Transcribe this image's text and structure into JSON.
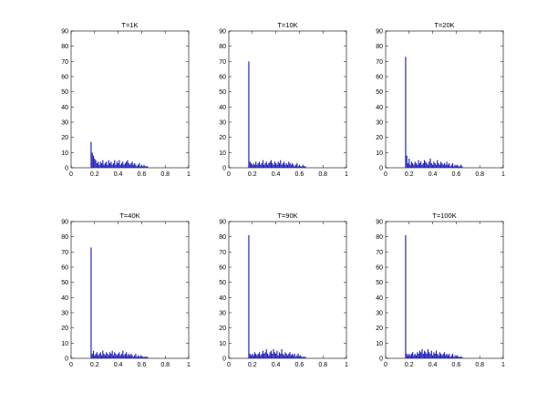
{
  "chart_data": [
    {
      "type": "bar",
      "title": "T=1K",
      "xlim": [
        0,
        1
      ],
      "ylim": [
        0,
        90
      ],
      "xticks": [
        "0",
        "0.2",
        "0.4",
        "0.6",
        "0.8",
        "1"
      ],
      "yticks": [
        "0",
        "10",
        "20",
        "30",
        "40",
        "50",
        "60",
        "70",
        "80",
        "90"
      ],
      "bar_color": "#1f1fbf",
      "x": [
        0.17,
        0.18,
        0.19,
        0.2,
        0.21,
        0.22,
        0.23,
        0.24,
        0.25,
        0.26,
        0.27,
        0.28,
        0.29,
        0.3,
        0.31,
        0.32,
        0.33,
        0.34,
        0.35,
        0.36,
        0.37,
        0.38,
        0.39,
        0.4,
        0.41,
        0.42,
        0.43,
        0.44,
        0.45,
        0.46,
        0.47,
        0.48,
        0.49,
        0.5,
        0.51,
        0.52,
        0.53,
        0.54,
        0.55,
        0.56,
        0.57,
        0.58,
        0.59,
        0.6,
        0.61,
        0.62,
        0.63,
        0.64,
        0.65
      ],
      "values": [
        17,
        10,
        8,
        6,
        5,
        3,
        4,
        2,
        4,
        3,
        5,
        2,
        3,
        4,
        2,
        5,
        3,
        4,
        2,
        3,
        5,
        2,
        4,
        3,
        5,
        2,
        3,
        4,
        2,
        3,
        4,
        5,
        3,
        2,
        3,
        4,
        2,
        3,
        2,
        1,
        2,
        3,
        1,
        2,
        1,
        2,
        1,
        1,
        1
      ]
    },
    {
      "type": "bar",
      "title": "T=10K",
      "xlim": [
        0,
        1
      ],
      "ylim": [
        0,
        90
      ],
      "xticks": [
        "0",
        "0.2",
        "0.4",
        "0.6",
        "0.8",
        "1"
      ],
      "yticks": [
        "0",
        "10",
        "20",
        "30",
        "40",
        "50",
        "60",
        "70",
        "80",
        "90"
      ],
      "bar_color": "#1f1fbf",
      "x": [
        0.17,
        0.18,
        0.19,
        0.2,
        0.21,
        0.22,
        0.23,
        0.24,
        0.25,
        0.26,
        0.27,
        0.28,
        0.29,
        0.3,
        0.31,
        0.32,
        0.33,
        0.34,
        0.35,
        0.36,
        0.37,
        0.38,
        0.39,
        0.4,
        0.41,
        0.42,
        0.43,
        0.44,
        0.45,
        0.46,
        0.47,
        0.48,
        0.49,
        0.5,
        0.51,
        0.52,
        0.53,
        0.54,
        0.55,
        0.56,
        0.57,
        0.58,
        0.59,
        0.6,
        0.61,
        0.62,
        0.63,
        0.64,
        0.65
      ],
      "values": [
        70,
        4,
        3,
        2,
        3,
        2,
        4,
        2,
        3,
        4,
        2,
        3,
        5,
        2,
        3,
        4,
        2,
        3,
        4,
        5,
        3,
        2,
        4,
        3,
        2,
        4,
        3,
        5,
        2,
        3,
        4,
        2,
        3,
        2,
        4,
        3,
        2,
        3,
        2,
        1,
        2,
        3,
        1,
        2,
        1,
        1,
        2,
        1,
        1
      ]
    },
    {
      "type": "bar",
      "title": "T=20K",
      "xlim": [
        0,
        1
      ],
      "ylim": [
        0,
        90
      ],
      "xticks": [
        "0",
        "0.2",
        "0.4",
        "0.6",
        "0.8",
        "1"
      ],
      "yticks": [
        "0",
        "10",
        "20",
        "30",
        "40",
        "50",
        "60",
        "70",
        "80",
        "90"
      ],
      "bar_color": "#1f1fbf",
      "x": [
        0.17,
        0.18,
        0.19,
        0.2,
        0.21,
        0.22,
        0.23,
        0.24,
        0.25,
        0.26,
        0.27,
        0.28,
        0.29,
        0.3,
        0.31,
        0.32,
        0.33,
        0.34,
        0.35,
        0.36,
        0.37,
        0.38,
        0.39,
        0.4,
        0.41,
        0.42,
        0.43,
        0.44,
        0.45,
        0.46,
        0.47,
        0.48,
        0.49,
        0.5,
        0.51,
        0.52,
        0.53,
        0.54,
        0.55,
        0.56,
        0.57,
        0.58,
        0.59,
        0.6,
        0.61,
        0.62,
        0.63,
        0.64,
        0.65
      ],
      "values": [
        73,
        8,
        3,
        6,
        2,
        4,
        3,
        2,
        4,
        3,
        2,
        5,
        3,
        4,
        2,
        3,
        5,
        4,
        3,
        2,
        4,
        6,
        3,
        2,
        4,
        3,
        2,
        5,
        3,
        2,
        4,
        3,
        2,
        3,
        2,
        4,
        2,
        3,
        1,
        2,
        3,
        1,
        2,
        1,
        2,
        1,
        1,
        2,
        1
      ]
    },
    {
      "type": "bar",
      "title": "T=40K",
      "xlim": [
        0,
        1
      ],
      "ylim": [
        0,
        90
      ],
      "xticks": [
        "0",
        "0.2",
        "0.4",
        "0.6",
        "0.8",
        "1"
      ],
      "yticks": [
        "0",
        "10",
        "20",
        "30",
        "40",
        "50",
        "60",
        "70",
        "80",
        "90"
      ],
      "bar_color": "#1f1fbf",
      "x": [
        0.17,
        0.18,
        0.19,
        0.2,
        0.21,
        0.22,
        0.23,
        0.24,
        0.25,
        0.26,
        0.27,
        0.28,
        0.29,
        0.3,
        0.31,
        0.32,
        0.33,
        0.34,
        0.35,
        0.36,
        0.37,
        0.38,
        0.39,
        0.4,
        0.41,
        0.42,
        0.43,
        0.44,
        0.45,
        0.46,
        0.47,
        0.48,
        0.49,
        0.5,
        0.51,
        0.52,
        0.53,
        0.54,
        0.55,
        0.56,
        0.57,
        0.58,
        0.59,
        0.6,
        0.61,
        0.62,
        0.63,
        0.64,
        0.65
      ],
      "values": [
        73,
        3,
        5,
        2,
        3,
        4,
        2,
        3,
        4,
        2,
        5,
        3,
        2,
        4,
        3,
        2,
        4,
        3,
        5,
        2,
        4,
        3,
        2,
        3,
        4,
        2,
        3,
        5,
        2,
        3,
        4,
        2,
        3,
        2,
        3,
        2,
        1,
        2,
        3,
        1,
        2,
        1,
        2,
        1,
        1,
        1,
        1,
        1,
        1
      ]
    },
    {
      "type": "bar",
      "title": "T=90K",
      "xlim": [
        0,
        1
      ],
      "ylim": [
        0,
        90
      ],
      "xticks": [
        "0",
        "0.2",
        "0.4",
        "0.6",
        "0.8",
        "1"
      ],
      "yticks": [
        "0",
        "10",
        "20",
        "30",
        "40",
        "50",
        "60",
        "70",
        "80",
        "90"
      ],
      "bar_color": "#1f1fbf",
      "x": [
        0.17,
        0.18,
        0.19,
        0.2,
        0.21,
        0.22,
        0.23,
        0.24,
        0.25,
        0.26,
        0.27,
        0.28,
        0.29,
        0.3,
        0.31,
        0.32,
        0.33,
        0.34,
        0.35,
        0.36,
        0.37,
        0.38,
        0.39,
        0.4,
        0.41,
        0.42,
        0.43,
        0.44,
        0.45,
        0.46,
        0.47,
        0.48,
        0.49,
        0.5,
        0.51,
        0.52,
        0.53,
        0.54,
        0.55,
        0.56,
        0.57,
        0.58,
        0.59,
        0.6,
        0.61,
        0.62,
        0.63,
        0.64,
        0.65
      ],
      "values": [
        81,
        3,
        2,
        3,
        2,
        4,
        3,
        2,
        3,
        4,
        2,
        3,
        5,
        3,
        4,
        6,
        3,
        2,
        4,
        5,
        3,
        6,
        4,
        3,
        5,
        2,
        4,
        3,
        6,
        3,
        2,
        4,
        3,
        2,
        3,
        4,
        2,
        3,
        2,
        3,
        1,
        2,
        3,
        1,
        2,
        1,
        1,
        1,
        1
      ]
    },
    {
      "type": "bar",
      "title": "T=100K",
      "xlim": [
        0,
        1
      ],
      "ylim": [
        0,
        90
      ],
      "xticks": [
        "0",
        "0.2",
        "0.4",
        "0.6",
        "0.8",
        "1"
      ],
      "yticks": [
        "0",
        "10",
        "20",
        "30",
        "40",
        "50",
        "60",
        "70",
        "80",
        "90"
      ],
      "bar_color": "#1f1fbf",
      "x": [
        0.17,
        0.18,
        0.19,
        0.2,
        0.21,
        0.22,
        0.23,
        0.24,
        0.25,
        0.26,
        0.27,
        0.28,
        0.29,
        0.3,
        0.31,
        0.32,
        0.33,
        0.34,
        0.35,
        0.36,
        0.37,
        0.38,
        0.39,
        0.4,
        0.41,
        0.42,
        0.43,
        0.44,
        0.45,
        0.46,
        0.47,
        0.48,
        0.49,
        0.5,
        0.51,
        0.52,
        0.53,
        0.54,
        0.55,
        0.56,
        0.57,
        0.58,
        0.59,
        0.6,
        0.61,
        0.62,
        0.63,
        0.64,
        0.65
      ],
      "values": [
        81,
        3,
        2,
        3,
        2,
        3,
        4,
        2,
        3,
        2,
        4,
        3,
        5,
        4,
        6,
        3,
        5,
        4,
        3,
        6,
        4,
        3,
        5,
        2,
        4,
        3,
        5,
        3,
        2,
        4,
        3,
        2,
        3,
        4,
        2,
        3,
        2,
        3,
        1,
        2,
        3,
        1,
        2,
        1,
        2,
        1,
        1,
        1,
        1
      ]
    }
  ]
}
